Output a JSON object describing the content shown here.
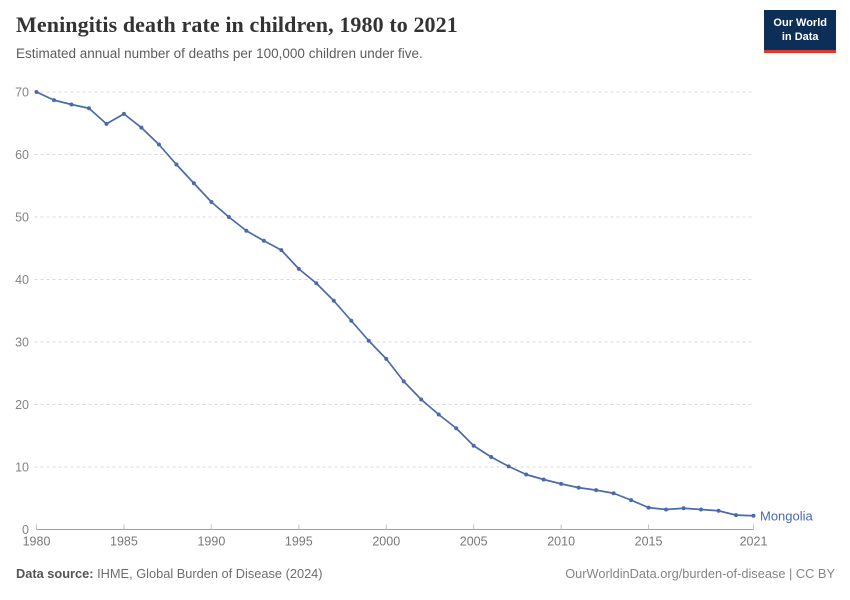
{
  "header": {
    "title": "Meningitis death rate in children, 1980 to 2021",
    "subtitle": "Estimated annual number of deaths per 100,000 children under five.",
    "logo": {
      "line1": "Our World",
      "line2": "in Data",
      "bg_color": "#0d2e56",
      "accent_color": "#d93a2d"
    }
  },
  "chart_data": {
    "type": "line",
    "title": "Meningitis death rate in children, 1980 to 2021",
    "subtitle": "Estimated annual number of deaths per 100,000 children under five.",
    "xlabel": "",
    "ylabel": "",
    "xlim": [
      1980,
      2021
    ],
    "ylim": [
      0,
      70
    ],
    "yticks": [
      0,
      10,
      20,
      30,
      40,
      50,
      60,
      70
    ],
    "xticks": [
      1980,
      1985,
      1990,
      1995,
      2000,
      2005,
      2010,
      2015,
      2021
    ],
    "grid": "horizontal-dashed",
    "legend": "end-of-line-label",
    "x": [
      1980,
      1981,
      1982,
      1983,
      1984,
      1985,
      1986,
      1987,
      1988,
      1989,
      1990,
      1991,
      1992,
      1993,
      1994,
      1995,
      1996,
      1997,
      1998,
      1999,
      2000,
      2001,
      2002,
      2003,
      2004,
      2005,
      2006,
      2007,
      2008,
      2009,
      2010,
      2011,
      2012,
      2013,
      2014,
      2015,
      2016,
      2017,
      2018,
      2019,
      2020,
      2021
    ],
    "series": [
      {
        "name": "Mongolia",
        "color": "#4a6ba8",
        "values": [
          70.0,
          68.7,
          68.0,
          67.4,
          64.9,
          66.5,
          64.3,
          61.6,
          58.4,
          55.4,
          52.4,
          50.0,
          47.8,
          46.2,
          44.7,
          41.7,
          39.4,
          36.6,
          33.4,
          30.2,
          27.3,
          23.7,
          20.8,
          18.4,
          16.2,
          13.4,
          11.6,
          10.1,
          8.8,
          8.0,
          7.3,
          6.7,
          6.3,
          5.8,
          4.7,
          3.5,
          3.2,
          3.4,
          3.2,
          3.0,
          2.3,
          2.2
        ]
      }
    ],
    "colors": {
      "gridline": "#d9d9d9",
      "axis_line": "#9e9e9e",
      "tick_mark": "#c2c2c2",
      "y_tick_label": "#848484",
      "x_tick_label": "#787878"
    }
  },
  "footer": {
    "source_label": "Data source:",
    "source_text": " IHME, Global Burden of Disease (2024)",
    "rights": "OurWorldinData.org/burden-of-disease | CC BY"
  }
}
